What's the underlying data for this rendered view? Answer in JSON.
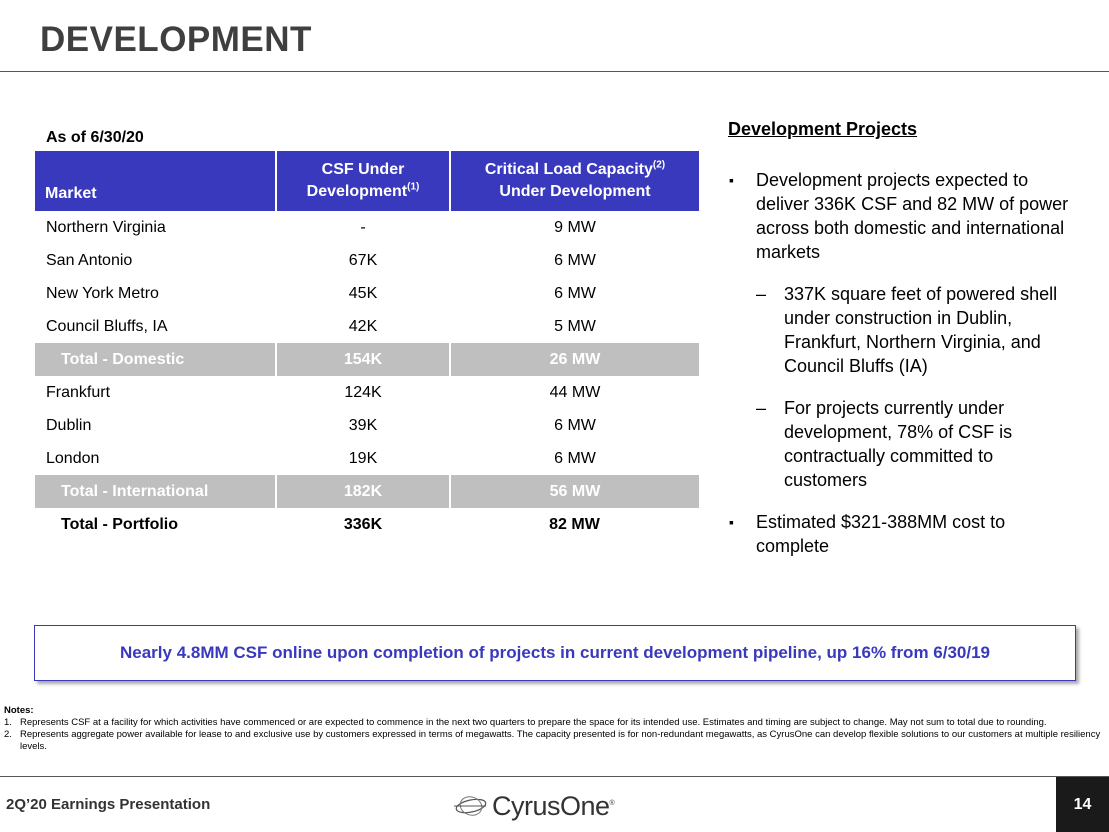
{
  "title": "DEVELOPMENT",
  "as_of": "As of 6/30/20",
  "table": {
    "headers": {
      "market": "Market",
      "csf_line1": "CSF Under",
      "csf_line2": "Development",
      "csf_sup": "(1)",
      "cap_line1": "Critical Load Capacity",
      "cap_sup": "(2)",
      "cap_line2": "Under Development"
    },
    "rows": [
      {
        "market": "Northern Virginia",
        "csf": "-",
        "capacity": "9 MW"
      },
      {
        "market": "San Antonio",
        "csf": "67K",
        "capacity": "6 MW"
      },
      {
        "market": "New York Metro",
        "csf": "45K",
        "capacity": "6 MW"
      },
      {
        "market": "Council Bluffs, IA",
        "csf": "42K",
        "capacity": "5 MW"
      },
      {
        "market": "Total - Domestic",
        "csf": "154K",
        "capacity": "26 MW"
      },
      {
        "market": "Frankfurt",
        "csf": "124K",
        "capacity": "44 MW"
      },
      {
        "market": "Dublin",
        "csf": "39K",
        "capacity": "6 MW"
      },
      {
        "market": "London",
        "csf": "19K",
        "capacity": "6 MW"
      },
      {
        "market": "Total - International",
        "csf": "182K",
        "capacity": "56 MW"
      },
      {
        "market": "Total - Portfolio",
        "csf": "336K",
        "capacity": "82 MW"
      }
    ]
  },
  "projects": {
    "heading": "Development Projects",
    "bullet_symbol": "▪",
    "dash_symbol": "–",
    "bullet1": "Development projects expected to deliver 336K CSF and 82 MW of power across both domestic and international markets",
    "sub1": "337K square feet of powered shell under construction in Dublin, Frankfurt, Northern Virginia, and Council Bluffs (IA)",
    "sub2": "For projects currently under development, 78% of CSF is contractually committed to customers",
    "bullet2": "Estimated $321-388MM cost to complete"
  },
  "callout": "Nearly 4.8MM CSF online upon completion of projects in current development pipeline, up 16% from 6/30/19",
  "notes": {
    "title": "Notes:",
    "items": [
      {
        "num": "1.",
        "text": "Represents CSF at a facility for which activities have commenced or are expected to commence in the next two quarters to prepare the space for its intended use. Estimates and timing are subject to change. May not sum to total due to rounding."
      },
      {
        "num": "2.",
        "text": "Represents aggregate power available for lease to and exclusive use by customers expressed in terms of megawatts. The capacity presented is for non-redundant megawatts, as CyrusOne can develop flexible solutions to our customers at multiple resiliency levels."
      }
    ]
  },
  "footer": {
    "presentation": "2Q’20 Earnings Presentation",
    "logo_text": "CyrusOne",
    "logo_mark": "®",
    "page_number": "14"
  },
  "colors": {
    "header_blue": "#3939bd",
    "subtotal_gray": "#bfbfbf",
    "title_gray": "#3f3f3f"
  }
}
